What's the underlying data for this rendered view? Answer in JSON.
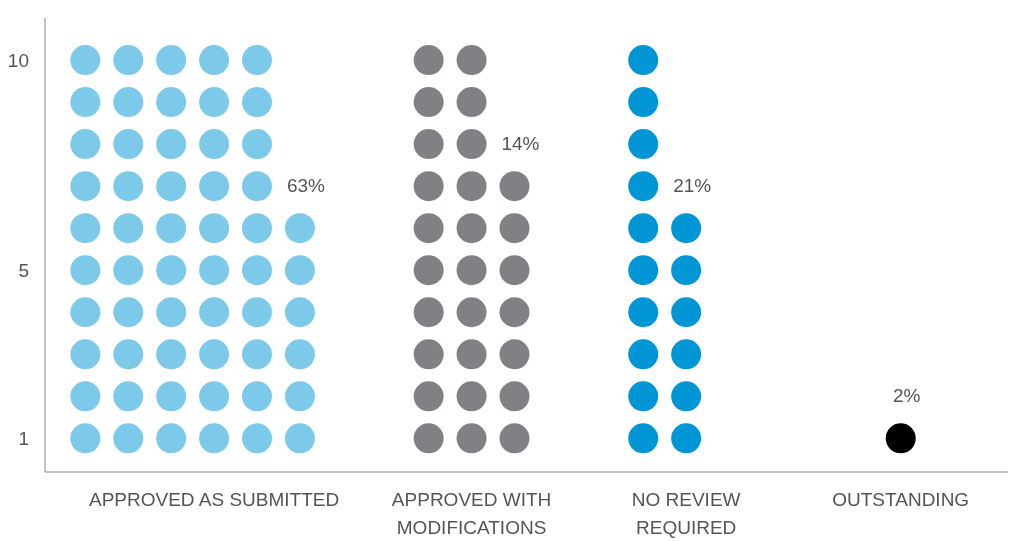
{
  "chart_data": {
    "type": "scatter",
    "marker": "circle",
    "legend": false,
    "grid": false,
    "ylim": [
      0.2,
      11
    ],
    "yticks": [
      1,
      5,
      10
    ],
    "categories": [
      null,
      null,
      null,
      "APPROVED AS SUBMITTED",
      null,
      null,
      null,
      null,
      null,
      "APPROVED WITH\nMODIFICATIONS",
      null,
      null,
      null,
      null,
      "NO REVIEW\nREQUIRED",
      null,
      null,
      null,
      null,
      "OUTSTANDING"
    ],
    "series": [
      {
        "values": [
          1,
          1,
          1,
          1,
          1,
          1,
          null,
          null,
          1,
          1,
          1,
          null,
          null,
          1,
          1,
          null,
          null,
          null,
          null,
          1
        ],
        "colors": [
          "#7dc9ea",
          "#7dc9ea",
          "#7dc9ea",
          "#7dc9ea",
          "#7dc9ea",
          "#7dc9ea",
          null,
          null,
          "#808184",
          "#808184",
          "#808184",
          null,
          null,
          "#0096d6",
          "#0096d6",
          null,
          null,
          null,
          null,
          "#000000"
        ]
      },
      {
        "values": [
          2,
          2,
          2,
          2,
          2,
          2,
          null,
          null,
          2,
          2,
          2,
          null,
          null,
          2,
          2,
          null,
          null,
          null,
          null,
          null
        ],
        "colors": [
          "#7dc9ea",
          "#7dc9ea",
          "#7dc9ea",
          "#7dc9ea",
          "#7dc9ea",
          "#7dc9ea",
          null,
          null,
          "#808184",
          "#808184",
          "#808184",
          null,
          null,
          "#0096d6",
          "#0096d6",
          null,
          null,
          null,
          null,
          null
        ]
      },
      {
        "values": [
          3,
          3,
          3,
          3,
          3,
          3,
          null,
          null,
          3,
          3,
          3,
          null,
          null,
          3,
          3,
          null,
          null,
          null,
          null,
          null
        ],
        "colors": [
          "#7dc9ea",
          "#7dc9ea",
          "#7dc9ea",
          "#7dc9ea",
          "#7dc9ea",
          "#7dc9ea",
          null,
          null,
          "#808184",
          "#808184",
          "#808184",
          null,
          null,
          "#0096d6",
          "#0096d6",
          null,
          null,
          null,
          null,
          null
        ]
      },
      {
        "values": [
          4,
          4,
          4,
          4,
          4,
          4,
          null,
          null,
          4,
          4,
          4,
          null,
          null,
          4,
          4,
          null,
          null,
          null,
          null,
          null
        ],
        "colors": [
          "#7dc9ea",
          "#7dc9ea",
          "#7dc9ea",
          "#7dc9ea",
          "#7dc9ea",
          "#7dc9ea",
          null,
          null,
          "#808184",
          "#808184",
          "#808184",
          null,
          null,
          "#0096d6",
          "#0096d6",
          null,
          null,
          null,
          null,
          null
        ]
      },
      {
        "values": [
          5,
          5,
          5,
          5,
          5,
          5,
          null,
          null,
          5,
          5,
          5,
          null,
          null,
          5,
          5,
          null,
          null,
          null,
          null,
          null
        ],
        "colors": [
          "#7dc9ea",
          "#7dc9ea",
          "#7dc9ea",
          "#7dc9ea",
          "#7dc9ea",
          "#7dc9ea",
          null,
          null,
          "#808184",
          "#808184",
          "#808184",
          null,
          null,
          "#0096d6",
          "#0096d6",
          null,
          null,
          null,
          null,
          null
        ]
      },
      {
        "values": [
          6,
          6,
          6,
          6,
          6,
          6,
          null,
          null,
          6,
          6,
          6,
          null,
          null,
          6,
          6,
          null,
          null,
          null,
          null,
          null
        ],
        "colors": [
          "#7dc9ea",
          "#7dc9ea",
          "#7dc9ea",
          "#7dc9ea",
          "#7dc9ea",
          "#7dc9ea",
          null,
          null,
          "#808184",
          "#808184",
          "#808184",
          null,
          null,
          "#0096d6",
          "#0096d6",
          null,
          null,
          null,
          null,
          null
        ]
      },
      {
        "values": [
          7,
          7,
          7,
          7,
          7,
          null,
          null,
          null,
          7,
          7,
          7,
          null,
          null,
          7,
          null,
          null,
          null,
          null,
          null,
          null
        ],
        "colors": [
          "#7dc9ea",
          "#7dc9ea",
          "#7dc9ea",
          "#7dc9ea",
          "#7dc9ea",
          null,
          null,
          null,
          "#808184",
          "#808184",
          "#808184",
          null,
          null,
          "#0096d6",
          null,
          null,
          null,
          null,
          null,
          null
        ]
      },
      {
        "values": [
          8,
          8,
          8,
          8,
          8,
          null,
          null,
          null,
          8,
          8,
          null,
          null,
          null,
          8,
          null,
          null,
          null,
          null,
          null,
          null
        ],
        "colors": [
          "#7dc9ea",
          "#7dc9ea",
          "#7dc9ea",
          "#7dc9ea",
          "#7dc9ea",
          null,
          null,
          null,
          "#808184",
          "#808184",
          null,
          null,
          null,
          "#0096d6",
          null,
          null,
          null,
          null,
          null,
          null
        ]
      },
      {
        "values": [
          9,
          9,
          9,
          9,
          9,
          null,
          null,
          null,
          9,
          9,
          null,
          null,
          null,
          9,
          null,
          null,
          null,
          null,
          null,
          null
        ],
        "colors": [
          "#7dc9ea",
          "#7dc9ea",
          "#7dc9ea",
          "#7dc9ea",
          "#7dc9ea",
          null,
          null,
          null,
          "#808184",
          "#808184",
          null,
          null,
          null,
          "#0096d6",
          null,
          null,
          null,
          null,
          null,
          null
        ]
      },
      {
        "values": [
          10,
          10,
          10,
          10,
          10,
          null,
          null,
          null,
          10,
          10,
          null,
          null,
          null,
          10,
          null,
          null,
          null,
          null,
          null,
          null
        ],
        "colors": [
          "#7dc9ea",
          "#7dc9ea",
          "#7dc9ea",
          "#7dc9ea",
          "#7dc9ea",
          null,
          null,
          null,
          "#808184",
          "#808184",
          null,
          null,
          null,
          "#0096d6",
          null,
          null,
          null,
          null,
          null,
          null
        ]
      }
    ],
    "annotations": [
      "63%",
      "14%",
      "21%",
      "2%"
    ]
  }
}
